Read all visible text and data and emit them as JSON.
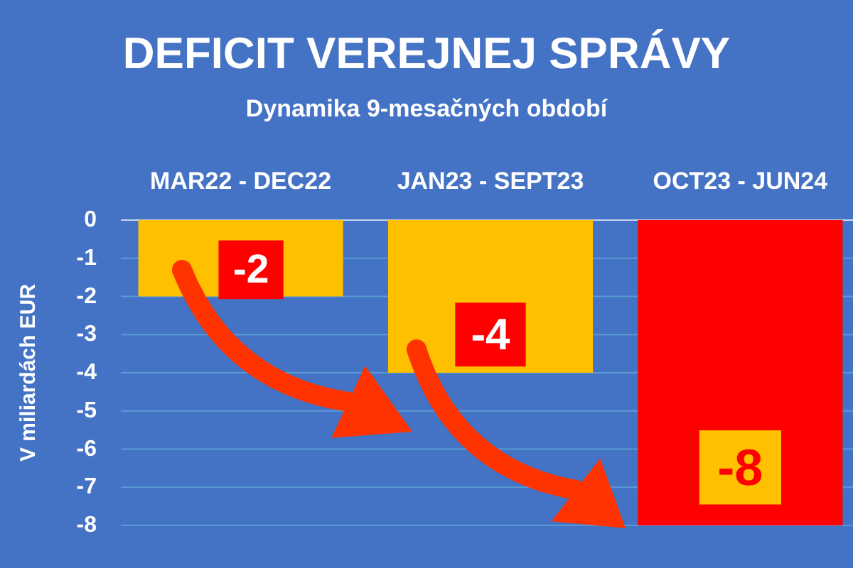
{
  "chart_data": {
    "type": "bar",
    "title": "DEFICIT VEREJNEJ SPRÁVY",
    "subtitle": "Dynamika 9-mesačných období",
    "ylabel": "V miliardách EUR",
    "categories": [
      "MAR22 - DEC22",
      "JAN23 - SEPT23",
      "OCT23 - JUN24"
    ],
    "values": [
      -2,
      -4,
      -8
    ],
    "colors": [
      "#ffc000",
      "#ffc000",
      "#ff0000"
    ],
    "ylim": [
      -8,
      0
    ],
    "yticks": [
      0,
      -1,
      -2,
      -3,
      -4,
      -5,
      -6,
      -7,
      -8
    ],
    "grid": "y",
    "data_labels": true
  }
}
